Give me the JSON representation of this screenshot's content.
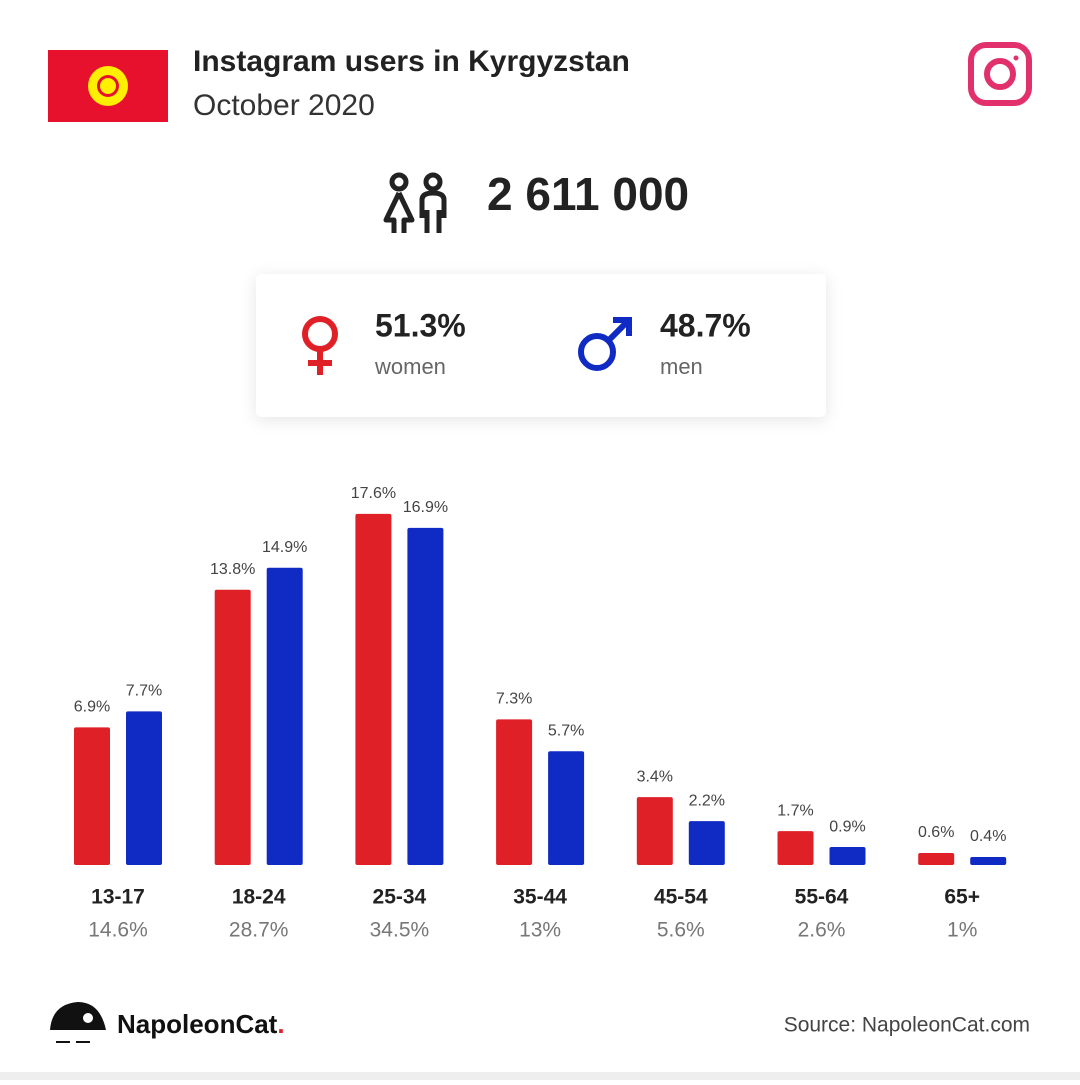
{
  "header": {
    "title": "Instagram users in Kyrgyzstan",
    "subtitle": "October 2020"
  },
  "total": "2 611 000",
  "gender": {
    "women": {
      "share": "51.3%",
      "label": "women"
    },
    "men": {
      "share": "48.7%",
      "label": "men"
    }
  },
  "chart_data": {
    "type": "bar",
    "categories": [
      "13-17",
      "18-24",
      "25-34",
      "35-44",
      "45-54",
      "55-64",
      "65+"
    ],
    "series": [
      {
        "color": "#e02027",
        "values": [
          6.9,
          13.8,
          17.6,
          7.3,
          3.4,
          1.7,
          0.6
        ],
        "value_labels": [
          "6.9%",
          "13.8%",
          "17.6%",
          "7.3%",
          "3.4%",
          "1.7%",
          "0.6%"
        ]
      },
      {
        "color": "#0f2bc4",
        "values": [
          7.7,
          14.9,
          16.9,
          5.7,
          2.2,
          0.9,
          0.4
        ],
        "value_labels": [
          "7.7%",
          "14.9%",
          "16.9%",
          "5.7%",
          "2.2%",
          "0.9%",
          "0.4%"
        ]
      }
    ],
    "totals": {
      "values": [
        14.6,
        28.7,
        34.5,
        13,
        5.6,
        2.6,
        1
      ],
      "value_labels": [
        "14.6%",
        "28.7%",
        "34.5%",
        "13%",
        "5.6%",
        "2.6%",
        "1%"
      ]
    }
  },
  "footer": {
    "brand": {
      "name": "NapoleonCat",
      "dot": "."
    },
    "source": "Source: NapoleonCat.com"
  }
}
